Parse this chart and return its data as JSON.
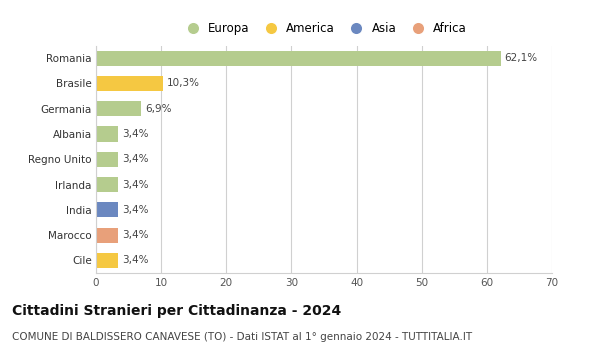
{
  "categories": [
    "Romania",
    "Brasile",
    "Germania",
    "Albania",
    "Regno Unito",
    "Irlanda",
    "India",
    "Marocco",
    "Cile"
  ],
  "values": [
    62.1,
    10.3,
    6.9,
    3.4,
    3.4,
    3.4,
    3.4,
    3.4,
    3.4
  ],
  "labels": [
    "62,1%",
    "10,3%",
    "6,9%",
    "3,4%",
    "3,4%",
    "3,4%",
    "3,4%",
    "3,4%",
    "3,4%"
  ],
  "colors": [
    "#b5cc8e",
    "#f5c842",
    "#b5cc8e",
    "#b5cc8e",
    "#b5cc8e",
    "#b5cc8e",
    "#6b88c0",
    "#e8a07a",
    "#f5c842"
  ],
  "legend_labels": [
    "Europa",
    "America",
    "Asia",
    "Africa"
  ],
  "legend_colors": [
    "#b5cc8e",
    "#f5c842",
    "#6b88c0",
    "#e8a07a"
  ],
  "xlim": [
    0,
    70
  ],
  "xticks": [
    0,
    10,
    20,
    30,
    40,
    50,
    60,
    70
  ],
  "title": "Cittadini Stranieri per Cittadinanza - 2024",
  "subtitle": "COMUNE DI BALDISSERO CANAVESE (TO) - Dati ISTAT al 1° gennaio 2024 - TUTTITALIA.IT",
  "bg_color": "#ffffff",
  "plot_bg_color": "#ffffff",
  "grid_color": "#d0d0d0",
  "bar_height": 0.6,
  "title_fontsize": 10,
  "subtitle_fontsize": 7.5,
  "label_fontsize": 7.5,
  "tick_fontsize": 7.5,
  "legend_fontsize": 8.5
}
